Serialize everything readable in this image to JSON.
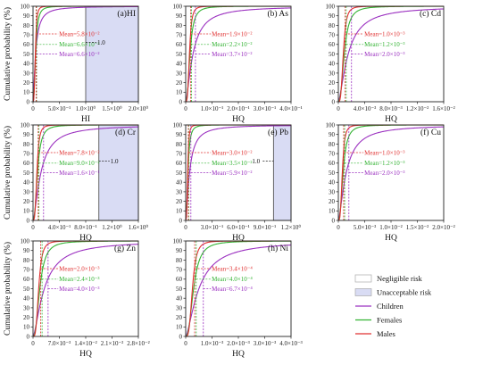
{
  "figure": {
    "ylabel": "Cumulative probability (%)",
    "legend": {
      "placement": "bottom-right",
      "items": [
        {
          "label": "Negligible risk",
          "kind": "box",
          "fill": "#ffffff",
          "stroke": "#aaaaaa"
        },
        {
          "label": "Unacceptable risk",
          "kind": "box",
          "fill": "#d9dcf4",
          "stroke": "#aaaaaa"
        },
        {
          "label": "Children",
          "kind": "line",
          "color": "#9b30c0"
        },
        {
          "label": "Females",
          "kind": "line",
          "color": "#33b333"
        },
        {
          "label": "Males",
          "kind": "line",
          "color": "#e03030"
        }
      ]
    }
  },
  "chart_data": [
    {
      "type": "line",
      "title": "(a)HI",
      "xlabel": "HI",
      "ylabel": "Cumulative probability (%)",
      "xlim": [
        0,
        2.0
      ],
      "ylim": [
        0,
        100
      ],
      "xticks": [
        0,
        0.5,
        1.0,
        1.5,
        2.0
      ],
      "xtick_labels": [
        "0",
        "5.0×10⁻¹",
        "1.0×10⁰",
        "1.5×10⁰",
        "2.0×10⁰"
      ],
      "yticks": [
        0,
        10,
        20,
        30,
        40,
        50,
        60,
        70,
        80,
        90,
        100
      ],
      "threshold": {
        "value": 1.0,
        "label": "1.0"
      },
      "series": [
        {
          "name": "Children",
          "color": "#9b30c0",
          "mean": 0.066,
          "mean_label": "Mean=6.6×10⁻²"
        },
        {
          "name": "Females",
          "color": "#33b333",
          "mean": 0.066,
          "mean_label": "Mean=6.6×10⁻²"
        },
        {
          "name": "Males",
          "color": "#e03030",
          "mean": 0.058,
          "mean_label": "Mean=5.8×10⁻²"
        }
      ]
    },
    {
      "type": "line",
      "title": "(b) As",
      "xlabel": "HQ",
      "ylabel": "",
      "xlim": [
        0,
        0.4
      ],
      "ylim": [
        0,
        100
      ],
      "xticks": [
        0,
        0.1,
        0.2,
        0.3,
        0.4
      ],
      "xtick_labels": [
        "0",
        "1.0×10⁻¹",
        "2.0×10⁻¹",
        "3.0×10⁻¹",
        "4.0×10⁻¹"
      ],
      "yticks": [
        0,
        10,
        20,
        30,
        40,
        50,
        60,
        70,
        80,
        90,
        100
      ],
      "threshold": null,
      "series": [
        {
          "name": "Children",
          "color": "#9b30c0",
          "mean": 0.037,
          "mean_label": "Mean=3.7×10⁻²"
        },
        {
          "name": "Females",
          "color": "#33b333",
          "mean": 0.022,
          "mean_label": "Mean=2.2×10⁻²"
        },
        {
          "name": "Males",
          "color": "#e03030",
          "mean": 0.019,
          "mean_label": "Mean=1.9×10⁻²"
        }
      ]
    },
    {
      "type": "line",
      "title": "(c) Cd",
      "xlabel": "HQ",
      "ylabel": "",
      "xlim": [
        0,
        0.016
      ],
      "ylim": [
        0,
        100
      ],
      "xticks": [
        0,
        0.004,
        0.008,
        0.012,
        0.016
      ],
      "xtick_labels": [
        "0",
        "4.0×10⁻³",
        "8.0×10⁻³",
        "1.2×10⁻²",
        "1.6×10⁻²"
      ],
      "yticks": [
        0,
        10,
        20,
        30,
        40,
        50,
        60,
        70,
        80,
        90,
        100
      ],
      "threshold": null,
      "series": [
        {
          "name": "Children",
          "color": "#9b30c0",
          "mean": 0.002,
          "mean_label": "Mean=2.0×10⁻³"
        },
        {
          "name": "Females",
          "color": "#33b333",
          "mean": 0.0012,
          "mean_label": "Mean=1.2×10⁻³"
        },
        {
          "name": "Males",
          "color": "#e03030",
          "mean": 0.001,
          "mean_label": "Mean=1.0×10⁻³"
        }
      ]
    },
    {
      "type": "line",
      "title": "(d) Cr",
      "xlabel": "HQ",
      "ylabel": "Cumulative probability (%)",
      "xlim": [
        0,
        1.6
      ],
      "ylim": [
        0,
        100
      ],
      "xticks": [
        0,
        0.4,
        0.8,
        1.2,
        1.6
      ],
      "xtick_labels": [
        "0",
        "4.0×10⁻¹",
        "8.0×10⁻¹",
        "1.2×10⁰",
        "1.6×10⁰"
      ],
      "yticks": [
        0,
        10,
        20,
        30,
        40,
        50,
        60,
        70,
        80,
        90,
        100
      ],
      "threshold": {
        "value": 1.0,
        "label": "1.0"
      },
      "series": [
        {
          "name": "Children",
          "color": "#9b30c0",
          "mean": 0.16,
          "mean_label": "Mean=1.6×10⁻¹"
        },
        {
          "name": "Females",
          "color": "#33b333",
          "mean": 0.09,
          "mean_label": "Mean=9.0×10⁻²"
        },
        {
          "name": "Males",
          "color": "#e03030",
          "mean": 0.078,
          "mean_label": "Mean=7.8×10⁻²"
        }
      ]
    },
    {
      "type": "line",
      "title": "(e) Pb",
      "xlabel": "HQ",
      "ylabel": "",
      "xlim": [
        0,
        1.2
      ],
      "ylim": [
        0,
        100
      ],
      "xticks": [
        0,
        0.3,
        0.6,
        0.9,
        1.2
      ],
      "xtick_labels": [
        "0",
        "3.0×10⁻¹",
        "6.0×10⁻¹",
        "9.0×10⁻¹",
        "1.2×10⁰"
      ],
      "yticks": [
        0,
        10,
        20,
        30,
        40,
        50,
        60,
        70,
        80,
        90,
        100
      ],
      "threshold": {
        "value": 1.0,
        "label": "1.0"
      },
      "series": [
        {
          "name": "Children",
          "color": "#9b30c0",
          "mean": 0.059,
          "mean_label": "Mean=5.9×10⁻²"
        },
        {
          "name": "Females",
          "color": "#33b333",
          "mean": 0.035,
          "mean_label": "Mean=3.5×10⁻²"
        },
        {
          "name": "Males",
          "color": "#e03030",
          "mean": 0.03,
          "mean_label": "Mean=3.0×10⁻²"
        }
      ]
    },
    {
      "type": "line",
      "title": "(f) Cu",
      "xlabel": "HQ",
      "ylabel": "",
      "xlim": [
        0,
        0.02
      ],
      "ylim": [
        0,
        100
      ],
      "xticks": [
        0,
        0.005,
        0.01,
        0.015,
        0.02
      ],
      "xtick_labels": [
        "0",
        "5.0×10⁻³",
        "1.0×10⁻²",
        "1.5×10⁻²",
        "2.0×10⁻²"
      ],
      "yticks": [
        0,
        10,
        20,
        30,
        40,
        50,
        60,
        70,
        80,
        90,
        100
      ],
      "threshold": null,
      "series": [
        {
          "name": "Children",
          "color": "#9b30c0",
          "mean": 0.002,
          "mean_label": "Mean=2.0×10⁻³"
        },
        {
          "name": "Females",
          "color": "#33b333",
          "mean": 0.0012,
          "mean_label": "Mean=1.2×10⁻³"
        },
        {
          "name": "Males",
          "color": "#e03030",
          "mean": 0.001,
          "mean_label": "Mean=1.0×10⁻³"
        }
      ]
    },
    {
      "type": "line",
      "title": "(g) Zn",
      "xlabel": "HQ",
      "ylabel": "Cumulative probability (%)",
      "xlim": [
        0,
        0.028
      ],
      "ylim": [
        0,
        100
      ],
      "xticks": [
        0,
        0.007,
        0.014,
        0.021,
        0.028
      ],
      "xtick_labels": [
        "0",
        "7.0×10⁻³",
        "1.4×10⁻²",
        "2.1×10⁻²",
        "2.8×10⁻²"
      ],
      "yticks": [
        0,
        10,
        20,
        30,
        40,
        50,
        60,
        70,
        80,
        90,
        100
      ],
      "threshold": null,
      "series": [
        {
          "name": "Children",
          "color": "#9b30c0",
          "mean": 0.004,
          "mean_label": "Mean=4.0×10⁻³"
        },
        {
          "name": "Females",
          "color": "#33b333",
          "mean": 0.0024,
          "mean_label": "Mean=2.4×10⁻³"
        },
        {
          "name": "Males",
          "color": "#e03030",
          "mean": 0.002,
          "mean_label": "Mean=2.0×10⁻³"
        }
      ]
    },
    {
      "type": "line",
      "title": "(h) Ni",
      "xlabel": "HQ",
      "ylabel": "",
      "xlim": [
        0,
        0.004
      ],
      "ylim": [
        0,
        100
      ],
      "xticks": [
        0,
        0.001,
        0.002,
        0.003,
        0.004
      ],
      "xtick_labels": [
        "0",
        "1.0×10⁻³",
        "2.0×10⁻³",
        "3.0×10⁻³",
        "4.0×10⁻³"
      ],
      "yticks": [
        0,
        10,
        20,
        30,
        40,
        50,
        60,
        70,
        80,
        90,
        100
      ],
      "threshold": null,
      "series": [
        {
          "name": "Children",
          "color": "#9b30c0",
          "mean": 0.00067,
          "mean_label": "Mean=6.7×10⁻⁴"
        },
        {
          "name": "Females",
          "color": "#33b333",
          "mean": 0.0004,
          "mean_label": "Mean=4.0×10⁻⁴"
        },
        {
          "name": "Males",
          "color": "#e03030",
          "mean": 0.00034,
          "mean_label": "Mean=3.4×10⁻⁴"
        }
      ]
    }
  ]
}
